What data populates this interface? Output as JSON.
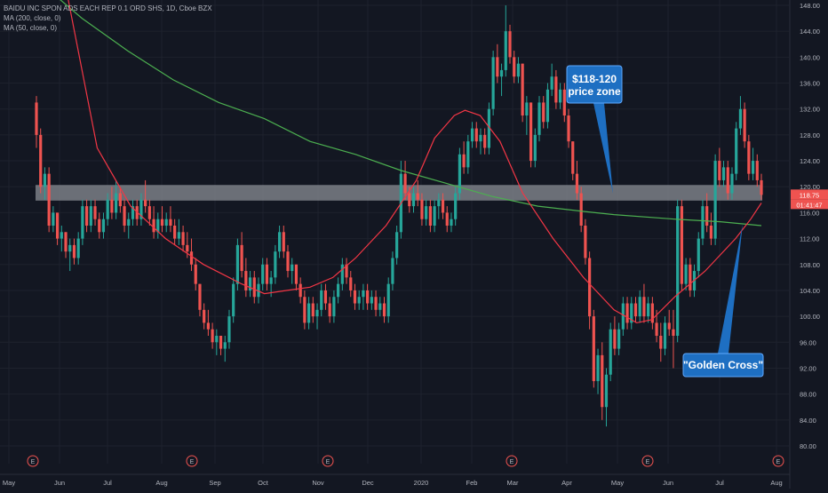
{
  "header": {
    "symbol_line": "BAIDU INC SPON ADS EACH REP 0.1 ORD SHS, 1D, Cboe BZX",
    "ma200_label": "MA (200, close, 0)",
    "ma50_label": "MA (50, close, 0)"
  },
  "colors": {
    "background": "#131722",
    "grid": "#1e222d",
    "up": "#26a69a",
    "down": "#ef5350",
    "ma50": "#f23645",
    "ma200": "#4caf50",
    "zone": "#8a8d94",
    "callout": "#1e6fc2"
  },
  "chart_data": {
    "type": "candlestick",
    "ylim": [
      79,
      149
    ],
    "y_ticks": [
      "148.00",
      "144.00",
      "140.00",
      "136.00",
      "132.00",
      "128.00",
      "124.00",
      "120.00",
      "116.00",
      "112.00",
      "108.00",
      "104.00",
      "100.00",
      "96.00",
      "92.00",
      "88.00",
      "84.00",
      "80.00"
    ],
    "x_ticks": [
      "May",
      "Jun",
      "Jul",
      "Aug",
      "Sep",
      "Oct",
      "Nov",
      "Dec",
      "2020",
      "Feb",
      "Mar",
      "Apr",
      "May",
      "Jun",
      "Jul",
      "Aug"
    ],
    "price_badge": "118.75",
    "countdown_badge": "01:41:47",
    "price_zone": [
      118,
      120
    ],
    "earnings_marker": "E",
    "earnings_count": 6,
    "annotations": [
      {
        "id": "price-zone-callout",
        "lines": [
          "$118-120",
          "price zone"
        ]
      },
      {
        "id": "golden-cross-callout",
        "lines": [
          "\"Golden Cross\""
        ]
      }
    ],
    "series": [
      {
        "name": "MA (200, close, 0)",
        "kind": "line",
        "points": [
          [
            0,
            152
          ],
          [
            30,
            146
          ],
          [
            60,
            141
          ],
          [
            90,
            136.5
          ],
          [
            120,
            133
          ],
          [
            150,
            130.5
          ],
          [
            180,
            127
          ],
          [
            210,
            125
          ],
          [
            240,
            122.5
          ],
          [
            270,
            120.5
          ],
          [
            300,
            118.5
          ],
          [
            330,
            117
          ],
          [
            360,
            116.2
          ],
          [
            380,
            115.7
          ],
          [
            420,
            115
          ],
          [
            450,
            114.6
          ],
          [
            477,
            114
          ]
        ]
      },
      {
        "name": "MA (50, close, 0)",
        "kind": "line",
        "points": [
          [
            0,
            180
          ],
          [
            20,
            150
          ],
          [
            40,
            126
          ],
          [
            62,
            117
          ],
          [
            85,
            112
          ],
          [
            110,
            108
          ],
          [
            135,
            105
          ],
          [
            150,
            103.5
          ],
          [
            165,
            104
          ],
          [
            180,
            104.5
          ],
          [
            195,
            106
          ],
          [
            210,
            109
          ],
          [
            230,
            114
          ],
          [
            250,
            121
          ],
          [
            262,
            127.5
          ],
          [
            275,
            131
          ],
          [
            282,
            131.8
          ],
          [
            292,
            131
          ],
          [
            305,
            127
          ],
          [
            320,
            119
          ],
          [
            340,
            112
          ],
          [
            360,
            106
          ],
          [
            380,
            101
          ],
          [
            395,
            99
          ],
          [
            405,
            99.5
          ],
          [
            420,
            103
          ],
          [
            440,
            107
          ],
          [
            460,
            112
          ],
          [
            470,
            115
          ],
          [
            477,
            117.5
          ]
        ]
      }
    ],
    "candles": [
      [
        0,
        133,
        134,
        126,
        128
      ],
      [
        1,
        128,
        129,
        119,
        120
      ],
      [
        2,
        120,
        123,
        118,
        122
      ],
      [
        3,
        122,
        123,
        113,
        114
      ],
      [
        4,
        114,
        117,
        113,
        116
      ],
      [
        5,
        116,
        116,
        111,
        112
      ],
      [
        6,
        112,
        114,
        110,
        113
      ],
      [
        7,
        113,
        113,
        109,
        110
      ],
      [
        8,
        110,
        112,
        107,
        111
      ],
      [
        9,
        111,
        112,
        108,
        109
      ],
      [
        10,
        109,
        113,
        108,
        112
      ],
      [
        11,
        112,
        118,
        111,
        117
      ],
      [
        12,
        117,
        118,
        113,
        114
      ],
      [
        13,
        114,
        118,
        113,
        117
      ],
      [
        14,
        117,
        118,
        114,
        115
      ],
      [
        15,
        115,
        116,
        112,
        113
      ],
      [
        16,
        113,
        116,
        112,
        115
      ],
      [
        17,
        115,
        119,
        114,
        118
      ],
      [
        18,
        118,
        120,
        115,
        116
      ],
      [
        19,
        116,
        121,
        115,
        119
      ],
      [
        20,
        119,
        120,
        116,
        117
      ],
      [
        21,
        117,
        118,
        113,
        114
      ],
      [
        22,
        114,
        116,
        112,
        115
      ],
      [
        23,
        115,
        118,
        114,
        117
      ],
      [
        24,
        117,
        118,
        114,
        115
      ],
      [
        25,
        115,
        119,
        114,
        118
      ],
      [
        26,
        118,
        121,
        116,
        117
      ],
      [
        27,
        117,
        118,
        114,
        115
      ],
      [
        28,
        115,
        117,
        112,
        113
      ],
      [
        29,
        113,
        116,
        112,
        115
      ],
      [
        30,
        115,
        117,
        113,
        114
      ],
      [
        31,
        114,
        116,
        113,
        115
      ],
      [
        32,
        115,
        117,
        113,
        114
      ],
      [
        33,
        114,
        115,
        111,
        112
      ],
      [
        34,
        112,
        115,
        111,
        113
      ],
      [
        35,
        113,
        114,
        110,
        111
      ],
      [
        36,
        111,
        113,
        109,
        110
      ],
      [
        37,
        110,
        112,
        107,
        108
      ],
      [
        38,
        108,
        109,
        104,
        105
      ],
      [
        39,
        105,
        105,
        100,
        101
      ],
      [
        40,
        101,
        102,
        98,
        99
      ],
      [
        41,
        99,
        101,
        97,
        98
      ],
      [
        42,
        98,
        99,
        95,
        96
      ],
      [
        43,
        96,
        98,
        94,
        97
      ],
      [
        44,
        97,
        97,
        94,
        95
      ],
      [
        45,
        95,
        97,
        93,
        96
      ],
      [
        46,
        96,
        101,
        95,
        100
      ],
      [
        47,
        100,
        106,
        99,
        105
      ],
      [
        48,
        105,
        112,
        104,
        111
      ],
      [
        49,
        111,
        113,
        106,
        107
      ],
      [
        50,
        107,
        109,
        103,
        104
      ],
      [
        51,
        104,
        107,
        103,
        106
      ],
      [
        52,
        106,
        107,
        102,
        103
      ],
      [
        53,
        103,
        106,
        102,
        105
      ],
      [
        54,
        105,
        109,
        104,
        108
      ],
      [
        55,
        108,
        109,
        104,
        105
      ],
      [
        56,
        105,
        107,
        103,
        106
      ],
      [
        57,
        106,
        111,
        105,
        110
      ],
      [
        58,
        110,
        114,
        109,
        113
      ],
      [
        59,
        113,
        114,
        109,
        110
      ],
      [
        60,
        110,
        111,
        106,
        107
      ],
      [
        61,
        107,
        109,
        105,
        108
      ],
      [
        62,
        108,
        108,
        104,
        105
      ],
      [
        63,
        105,
        106,
        102,
        103
      ],
      [
        64,
        103,
        104,
        98,
        99
      ],
      [
        65,
        99,
        103,
        98,
        102
      ],
      [
        66,
        102,
        103,
        99,
        100
      ],
      [
        67,
        100,
        102,
        98,
        101
      ],
      [
        68,
        101,
        105,
        100,
        104
      ],
      [
        69,
        104,
        105,
        101,
        102
      ],
      [
        70,
        102,
        103,
        99,
        100
      ],
      [
        71,
        100,
        104,
        99,
        103
      ],
      [
        72,
        103,
        106,
        102,
        105
      ],
      [
        73,
        105,
        109,
        104,
        108
      ],
      [
        74,
        108,
        109,
        105,
        106
      ],
      [
        75,
        106,
        107,
        103,
        104
      ],
      [
        76,
        104,
        105,
        101,
        102
      ],
      [
        77,
        102,
        104,
        101,
        103
      ],
      [
        78,
        103,
        105,
        101,
        104
      ],
      [
        79,
        104,
        105,
        101,
        102
      ],
      [
        80,
        102,
        104,
        101,
        103
      ],
      [
        81,
        103,
        104,
        100,
        101
      ],
      [
        82,
        101,
        103,
        100,
        102
      ],
      [
        83,
        102,
        103,
        99,
        100
      ],
      [
        84,
        100,
        106,
        99,
        105
      ],
      [
        85,
        105,
        110,
        104,
        109
      ],
      [
        86,
        109,
        114,
        108,
        113
      ],
      [
        87,
        113,
        124,
        112,
        122
      ],
      [
        88,
        122,
        124,
        118,
        119
      ],
      [
        89,
        119,
        120,
        116,
        117
      ],
      [
        90,
        117,
        120,
        116,
        119
      ],
      [
        91,
        119,
        121,
        117,
        118
      ],
      [
        92,
        118,
        119,
        114,
        115
      ],
      [
        93,
        115,
        118,
        114,
        117
      ],
      [
        94,
        117,
        118,
        113,
        114
      ],
      [
        95,
        114,
        118,
        113,
        117
      ],
      [
        96,
        117,
        119,
        115,
        118
      ],
      [
        97,
        118,
        119,
        115,
        116
      ],
      [
        98,
        116,
        117,
        113,
        114
      ],
      [
        99,
        114,
        116,
        113,
        115
      ],
      [
        100,
        115,
        120,
        114,
        119
      ],
      [
        101,
        119,
        126,
        118,
        125
      ],
      [
        102,
        125,
        127,
        122,
        123
      ],
      [
        103,
        123,
        128,
        122,
        127
      ],
      [
        104,
        127,
        130,
        126,
        129
      ],
      [
        105,
        129,
        130,
        126,
        127
      ],
      [
        106,
        127,
        129,
        125,
        128
      ],
      [
        107,
        128,
        129,
        125,
        126
      ],
      [
        108,
        126,
        133,
        125,
        132
      ],
      [
        109,
        132,
        141,
        131,
        140
      ],
      [
        110,
        140,
        142,
        136,
        137
      ],
      [
        111,
        137,
        139,
        134,
        138
      ],
      [
        112,
        138,
        148,
        137,
        144
      ],
      [
        113,
        144,
        145,
        139,
        140
      ],
      [
        114,
        140,
        141,
        136,
        137
      ],
      [
        115,
        137,
        140,
        136,
        139
      ],
      [
        116,
        139,
        139,
        130,
        131
      ],
      [
        117,
        131,
        134,
        128,
        133
      ],
      [
        118,
        133,
        133,
        123,
        124
      ],
      [
        119,
        124,
        129,
        123,
        128
      ],
      [
        120,
        128,
        134,
        127,
        133
      ],
      [
        121,
        133,
        134,
        129,
        130
      ],
      [
        122,
        130,
        136,
        129,
        135
      ],
      [
        123,
        135,
        139,
        134,
        137
      ],
      [
        124,
        137,
        138,
        132,
        133
      ],
      [
        125,
        133,
        136,
        132,
        135
      ],
      [
        126,
        135,
        136,
        130,
        131
      ],
      [
        127,
        131,
        132,
        126,
        127
      ],
      [
        128,
        127,
        127,
        121,
        122
      ],
      [
        129,
        122,
        124,
        118,
        119
      ],
      [
        130,
        119,
        120,
        113,
        114
      ],
      [
        131,
        114,
        115,
        108,
        109
      ],
      [
        132,
        109,
        110,
        98,
        100
      ],
      [
        133,
        100,
        101,
        89,
        90
      ],
      [
        134,
        90,
        95,
        88,
        94
      ],
      [
        135,
        94,
        96,
        84,
        86
      ],
      [
        136,
        86,
        92,
        83,
        91
      ],
      [
        137,
        91,
        99,
        90,
        98
      ],
      [
        138,
        98,
        100,
        94,
        95
      ],
      [
        139,
        95,
        99,
        94,
        98
      ],
      [
        140,
        98,
        103,
        97,
        102
      ],
      [
        141,
        102,
        103,
        98,
        99
      ],
      [
        142,
        99,
        103,
        98,
        102
      ],
      [
        143,
        102,
        103,
        99,
        100
      ],
      [
        144,
        100,
        104,
        99,
        103
      ],
      [
        145,
        103,
        105,
        99,
        100
      ],
      [
        146,
        100,
        103,
        99,
        102
      ],
      [
        147,
        102,
        103,
        98,
        99
      ],
      [
        148,
        99,
        101,
        96,
        97
      ],
      [
        149,
        97,
        99,
        93,
        95
      ],
      [
        150,
        95,
        100,
        94,
        99
      ],
      [
        151,
        99,
        101,
        97,
        98
      ],
      [
        152,
        98,
        101,
        92,
        97
      ],
      [
        153,
        97,
        118,
        96,
        117
      ],
      [
        154,
        117,
        118,
        104,
        105
      ],
      [
        155,
        105,
        109,
        104,
        108
      ],
      [
        156,
        108,
        109,
        103,
        104
      ],
      [
        157,
        104,
        108,
        103,
        107
      ],
      [
        158,
        107,
        113,
        106,
        112
      ],
      [
        159,
        112,
        118,
        111,
        117
      ],
      [
        160,
        117,
        119,
        113,
        114
      ],
      [
        161,
        114,
        116,
        111,
        112
      ],
      [
        162,
        112,
        125,
        111,
        124
      ],
      [
        163,
        124,
        126,
        120,
        121
      ],
      [
        164,
        121,
        124,
        120,
        123
      ],
      [
        165,
        123,
        124,
        118,
        119
      ],
      [
        166,
        119,
        123,
        118,
        122
      ],
      [
        167,
        122,
        130,
        121,
        129
      ],
      [
        168,
        129,
        134,
        128,
        132
      ],
      [
        169,
        132,
        133,
        126,
        127
      ],
      [
        170,
        127,
        128,
        121,
        122
      ],
      [
        171,
        122,
        126,
        121,
        124
      ],
      [
        172,
        124,
        125,
        120,
        121
      ],
      [
        173,
        121,
        122,
        118,
        118.75
      ]
    ]
  }
}
